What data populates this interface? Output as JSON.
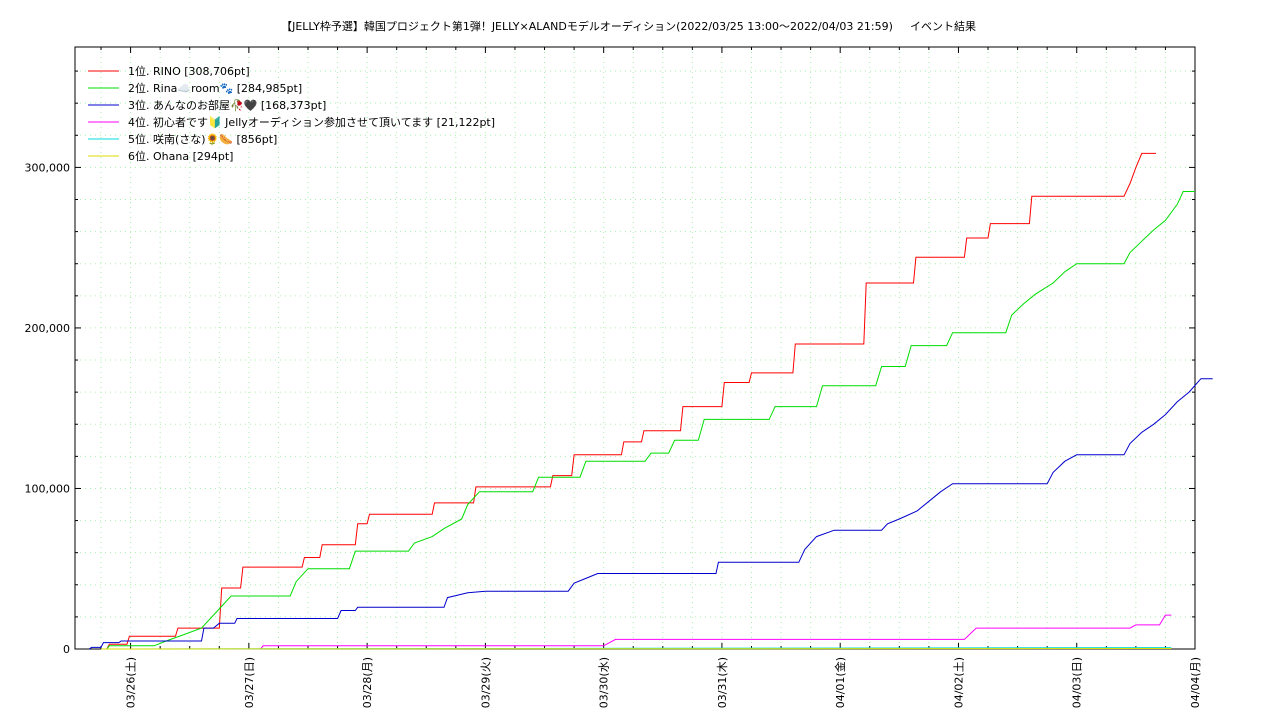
{
  "chart_data": {
    "type": "line",
    "title": "【JELLY枠予選】韓国プロジェクト第1弾！JELLY×ALANDモデルオーディション(2022/03/25 13:00〜2022/04/03 21:59)",
    "subtitle": "イベント結果",
    "xlabel": "",
    "ylabel": "",
    "grid": true,
    "legend_position": "top-left",
    "x_unit": "days since 2022/03/26 00:00",
    "xlim": [
      -0.47,
      9.0
    ],
    "ylim": [
      0,
      375000
    ],
    "x_ticks": [
      0,
      1,
      2,
      3,
      4,
      5,
      6,
      7,
      8,
      9
    ],
    "x_tick_labels": [
      "03/26(土)",
      "03/27(日)",
      "03/28(月)",
      "03/29(火)",
      "03/30(水)",
      "03/31(木)",
      "04/01(金)",
      "04/02(土)",
      "04/03(日)",
      "04/04(月)"
    ],
    "y_ticks": [
      0,
      100000,
      200000,
      300000
    ],
    "y_tick_labels": [
      "0",
      "100,000",
      "200,000",
      "300,000"
    ],
    "series": [
      {
        "name": "1位. RINO [308,706pt]",
        "color": "#ff0000",
        "points": [
          [
            -0.2,
            0
          ],
          [
            -0.18,
            3000
          ],
          [
            -0.03,
            3000
          ],
          [
            -0.01,
            8000
          ],
          [
            0.38,
            8000
          ],
          [
            0.4,
            13000
          ],
          [
            0.75,
            13000
          ],
          [
            0.77,
            38000
          ],
          [
            0.93,
            38000
          ],
          [
            0.95,
            51000
          ],
          [
            1.45,
            51000
          ],
          [
            1.47,
            57000
          ],
          [
            1.6,
            57000
          ],
          [
            1.62,
            65000
          ],
          [
            1.9,
            65000
          ],
          [
            1.92,
            78000
          ],
          [
            2.0,
            78000
          ],
          [
            2.02,
            84000
          ],
          [
            2.55,
            84000
          ],
          [
            2.57,
            91000
          ],
          [
            2.9,
            91000
          ],
          [
            2.92,
            101000
          ],
          [
            3.55,
            101000
          ],
          [
            3.57,
            108000
          ],
          [
            3.73,
            108000
          ],
          [
            3.75,
            121000
          ],
          [
            4.15,
            121000
          ],
          [
            4.17,
            129000
          ],
          [
            4.32,
            129000
          ],
          [
            4.34,
            136000
          ],
          [
            4.65,
            136000
          ],
          [
            4.67,
            151000
          ],
          [
            5.0,
            151000
          ],
          [
            5.02,
            166000
          ],
          [
            5.23,
            166000
          ],
          [
            5.25,
            172000
          ],
          [
            5.6,
            172000
          ],
          [
            5.62,
            190000
          ],
          [
            6.2,
            190000
          ],
          [
            6.22,
            228000
          ],
          [
            6.62,
            228000
          ],
          [
            6.64,
            244000
          ],
          [
            7.05,
            244000
          ],
          [
            7.07,
            256000
          ],
          [
            7.25,
            256000
          ],
          [
            7.27,
            265000
          ],
          [
            7.6,
            265000
          ],
          [
            7.62,
            282000
          ],
          [
            8.4,
            282000
          ],
          [
            8.45,
            290000
          ],
          [
            8.5,
            300000
          ],
          [
            8.55,
            308706
          ],
          [
            8.67,
            308706
          ]
        ]
      },
      {
        "name": "2位. Rina☁️room🐾 [284,985pt]",
        "color": "#00dd00",
        "points": [
          [
            -0.2,
            0
          ],
          [
            -0.18,
            2000
          ],
          [
            0.2,
            2000
          ],
          [
            0.3,
            5000
          ],
          [
            0.45,
            9000
          ],
          [
            0.6,
            13000
          ],
          [
            0.75,
            25000
          ],
          [
            0.85,
            33000
          ],
          [
            1.35,
            33000
          ],
          [
            1.4,
            42000
          ],
          [
            1.5,
            50000
          ],
          [
            1.85,
            50000
          ],
          [
            1.9,
            61000
          ],
          [
            2.35,
            61000
          ],
          [
            2.4,
            66000
          ],
          [
            2.55,
            70000
          ],
          [
            2.65,
            75000
          ],
          [
            2.8,
            81000
          ],
          [
            2.85,
            90000
          ],
          [
            2.95,
            98000
          ],
          [
            3.4,
            98000
          ],
          [
            3.45,
            107000
          ],
          [
            3.8,
            107000
          ],
          [
            3.85,
            117000
          ],
          [
            4.35,
            117000
          ],
          [
            4.4,
            122000
          ],
          [
            4.55,
            122000
          ],
          [
            4.6,
            130000
          ],
          [
            4.8,
            130000
          ],
          [
            4.85,
            143000
          ],
          [
            5.4,
            143000
          ],
          [
            5.45,
            151000
          ],
          [
            5.8,
            151000
          ],
          [
            5.85,
            164000
          ],
          [
            6.3,
            164000
          ],
          [
            6.35,
            176000
          ],
          [
            6.55,
            176000
          ],
          [
            6.6,
            189000
          ],
          [
            6.9,
            189000
          ],
          [
            6.95,
            197000
          ],
          [
            7.4,
            197000
          ],
          [
            7.45,
            208000
          ],
          [
            7.55,
            215000
          ],
          [
            7.65,
            221000
          ],
          [
            7.8,
            228000
          ],
          [
            7.9,
            235000
          ],
          [
            8.0,
            240000
          ],
          [
            8.4,
            240000
          ],
          [
            8.45,
            247000
          ],
          [
            8.55,
            254000
          ],
          [
            8.65,
            261000
          ],
          [
            8.75,
            267000
          ],
          [
            8.85,
            277000
          ],
          [
            8.9,
            284985
          ],
          [
            9.0,
            284985
          ]
        ]
      },
      {
        "name": "3位. あんなのお部屋🥀🖤 [168,373pt]",
        "color": "#0000cc",
        "points": [
          [
            -0.35,
            0
          ],
          [
            -0.33,
            1000
          ],
          [
            -0.25,
            1000
          ],
          [
            -0.23,
            4000
          ],
          [
            -0.1,
            4000
          ],
          [
            -0.08,
            5000
          ],
          [
            0.6,
            5000
          ],
          [
            0.62,
            13000
          ],
          [
            0.7,
            13000
          ],
          [
            0.75,
            16000
          ],
          [
            0.88,
            16000
          ],
          [
            0.9,
            19000
          ],
          [
            1.75,
            19000
          ],
          [
            1.78,
            24000
          ],
          [
            1.9,
            24000
          ],
          [
            1.92,
            26000
          ],
          [
            2.65,
            26000
          ],
          [
            2.68,
            32000
          ],
          [
            2.85,
            35000
          ],
          [
            3.0,
            36000
          ],
          [
            3.7,
            36000
          ],
          [
            3.75,
            41000
          ],
          [
            3.85,
            44000
          ],
          [
            3.95,
            47000
          ],
          [
            4.95,
            47000
          ],
          [
            4.97,
            54000
          ],
          [
            5.65,
            54000
          ],
          [
            5.7,
            62000
          ],
          [
            5.8,
            70000
          ],
          [
            5.95,
            74000
          ],
          [
            6.35,
            74000
          ],
          [
            6.4,
            78000
          ],
          [
            6.5,
            81000
          ],
          [
            6.65,
            86000
          ],
          [
            6.75,
            92000
          ],
          [
            6.85,
            98000
          ],
          [
            6.95,
            103000
          ],
          [
            7.75,
            103000
          ],
          [
            7.8,
            110000
          ],
          [
            7.9,
            117000
          ],
          [
            8.0,
            121000
          ],
          [
            8.4,
            121000
          ],
          [
            8.45,
            128000
          ],
          [
            8.55,
            135000
          ],
          [
            8.65,
            140000
          ],
          [
            8.75,
            146000
          ],
          [
            8.85,
            154000
          ],
          [
            8.95,
            160000
          ],
          [
            9.05,
            168373
          ],
          [
            9.15,
            168373
          ]
        ]
      },
      {
        "name": "4位. 初心者です🔰 Jellyオーディション参加させて頂いてます [21,122pt]",
        "color": "#ff00ff",
        "points": [
          [
            -0.05,
            0
          ],
          [
            1.1,
            0
          ],
          [
            1.12,
            2000
          ],
          [
            4.0,
            2000
          ],
          [
            4.1,
            6000
          ],
          [
            7.05,
            6000
          ],
          [
            7.15,
            13000
          ],
          [
            8.45,
            13000
          ],
          [
            8.5,
            15000
          ],
          [
            8.7,
            15000
          ],
          [
            8.75,
            21122
          ],
          [
            8.8,
            21122
          ]
        ]
      },
      {
        "name": "5位. 咲南(さな)🌻🌭 [856pt]",
        "color": "#00dddd",
        "points": [
          [
            -0.25,
            0
          ],
          [
            8.8,
            856
          ]
        ]
      },
      {
        "name": "6位. Ohana [294pt]",
        "color": "#dddd00",
        "points": [
          [
            -0.25,
            0
          ],
          [
            8.8,
            294
          ]
        ]
      }
    ]
  }
}
